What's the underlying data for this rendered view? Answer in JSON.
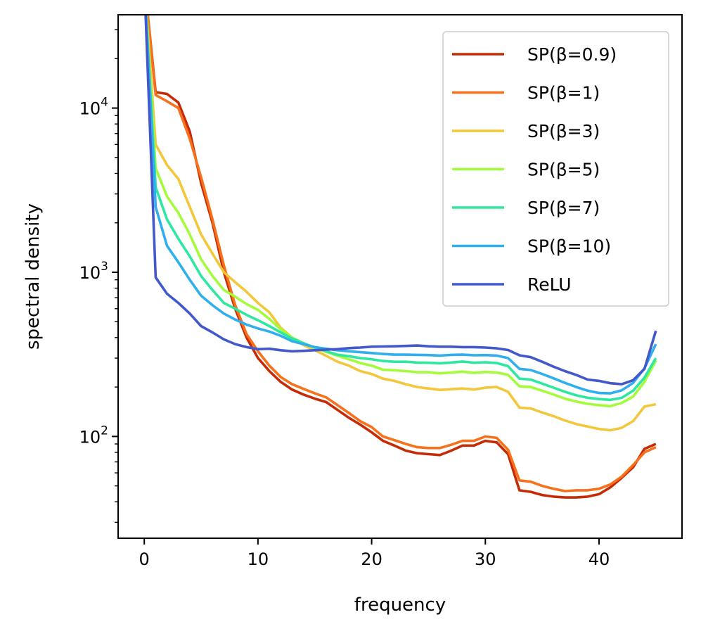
{
  "chart_data": {
    "type": "line",
    "title": "",
    "xlabel": "frequency",
    "ylabel": "spectral density",
    "xlim": [
      -2.3,
      47.3
    ],
    "ylim": [
      24,
      37000
    ],
    "yscale": "log",
    "grid": false,
    "legend_position": "top-right",
    "xticks": [
      {
        "value": 0,
        "label": "0"
      },
      {
        "value": 10,
        "label": "10"
      },
      {
        "value": 20,
        "label": "20"
      },
      {
        "value": 30,
        "label": "30"
      },
      {
        "value": 40,
        "label": "40"
      }
    ],
    "yticks": [
      {
        "value": 100,
        "base": "10",
        "exp": "2"
      },
      {
        "value": 1000,
        "base": "10",
        "exp": "3"
      },
      {
        "value": 10000,
        "base": "10",
        "exp": "4"
      }
    ],
    "x": [
      0,
      1,
      2,
      3,
      4,
      5,
      6,
      7,
      8,
      9,
      10,
      11,
      12,
      13,
      14,
      15,
      16,
      17,
      18,
      19,
      20,
      21,
      22,
      23,
      24,
      25,
      26,
      27,
      28,
      29,
      30,
      31,
      32,
      33,
      34,
      35,
      36,
      37,
      38,
      39,
      40,
      41,
      42,
      43,
      44,
      45
    ],
    "series": [
      {
        "name": "SP(β=0.9)",
        "color": "#c62b06",
        "values": [
          60000,
          12500,
          12200,
          10800,
          7200,
          3500,
          2000,
          1000,
          600,
          400,
          300,
          250,
          215,
          193,
          180,
          170,
          162,
          145,
          130,
          118,
          106,
          94,
          88,
          82,
          79,
          78,
          77,
          82,
          88,
          88,
          94,
          92,
          78,
          47,
          46,
          44,
          43,
          42.5,
          42.5,
          43,
          44.5,
          49,
          56,
          65,
          84,
          90
        ]
      },
      {
        "name": "SP(β=1)",
        "color": "#f7711c",
        "values": [
          60000,
          12000,
          11000,
          10000,
          6500,
          3800,
          2100,
          1100,
          630,
          420,
          330,
          270,
          230,
          208,
          195,
          183,
          173,
          155,
          139,
          124,
          114,
          100,
          95,
          90,
          86,
          85,
          85,
          89,
          94,
          94,
          100,
          98,
          83,
          54,
          53,
          50,
          48,
          46.5,
          47,
          47,
          48,
          51,
          57,
          67,
          80,
          86
        ]
      },
      {
        "name": "SP(β=3)",
        "color": "#f3c73a",
        "values": [
          60000,
          6000,
          4500,
          3700,
          2500,
          1700,
          1300,
          1000,
          870,
          760,
          650,
          570,
          460,
          400,
          360,
          335,
          310,
          285,
          270,
          250,
          240,
          225,
          218,
          208,
          200,
          196,
          192,
          194,
          196,
          193,
          198,
          200,
          187,
          150,
          148,
          140,
          133,
          125,
          119,
          115,
          111,
          109,
          113,
          124,
          152,
          157
        ]
      },
      {
        "name": "SP(β=5)",
        "color": "#a4fb3a",
        "values": [
          60000,
          4300,
          2900,
          2300,
          1700,
          1200,
          950,
          780,
          710,
          640,
          590,
          520,
          450,
          400,
          370,
          345,
          328,
          310,
          295,
          280,
          270,
          255,
          253,
          250,
          246,
          246,
          242,
          245,
          248,
          244,
          247,
          245,
          237,
          202,
          200,
          190,
          180,
          170,
          163,
          158,
          155,
          153,
          160,
          175,
          215,
          290
        ]
      },
      {
        "name": "SP(β=7)",
        "color": "#2ee8a2",
        "values": [
          60000,
          3300,
          2100,
          1600,
          1250,
          950,
          780,
          650,
          600,
          550,
          510,
          470,
          430,
          395,
          370,
          348,
          330,
          315,
          308,
          300,
          295,
          288,
          285,
          285,
          282,
          281,
          279,
          282,
          286,
          281,
          283,
          280,
          268,
          225,
          222,
          210,
          198,
          187,
          178,
          172,
          169,
          167,
          172,
          190,
          228,
          300
        ]
      },
      {
        "name": "SP(β=10)",
        "color": "#2fafee",
        "values": [
          60000,
          2500,
          1450,
          1150,
          900,
          720,
          630,
          560,
          515,
          480,
          455,
          435,
          410,
          380,
          365,
          350,
          342,
          335,
          330,
          326,
          322,
          318,
          315,
          315,
          314,
          313,
          311,
          314,
          315,
          312,
          313,
          311,
          300,
          258,
          254,
          240,
          226,
          212,
          200,
          190,
          184,
          183,
          191,
          212,
          260,
          365
        ]
      },
      {
        "name": "ReLU",
        "color": "#4358cb",
        "values": [
          60000,
          930,
          740,
          650,
          560,
          470,
          430,
          390,
          365,
          350,
          340,
          342,
          335,
          330,
          332,
          335,
          338,
          340,
          345,
          348,
          352,
          353,
          354,
          356,
          358,
          354,
          352,
          352,
          350,
          350,
          348,
          344,
          336,
          312,
          304,
          285,
          266,
          250,
          237,
          222,
          218,
          211,
          208,
          220,
          258,
          440
        ]
      }
    ]
  }
}
